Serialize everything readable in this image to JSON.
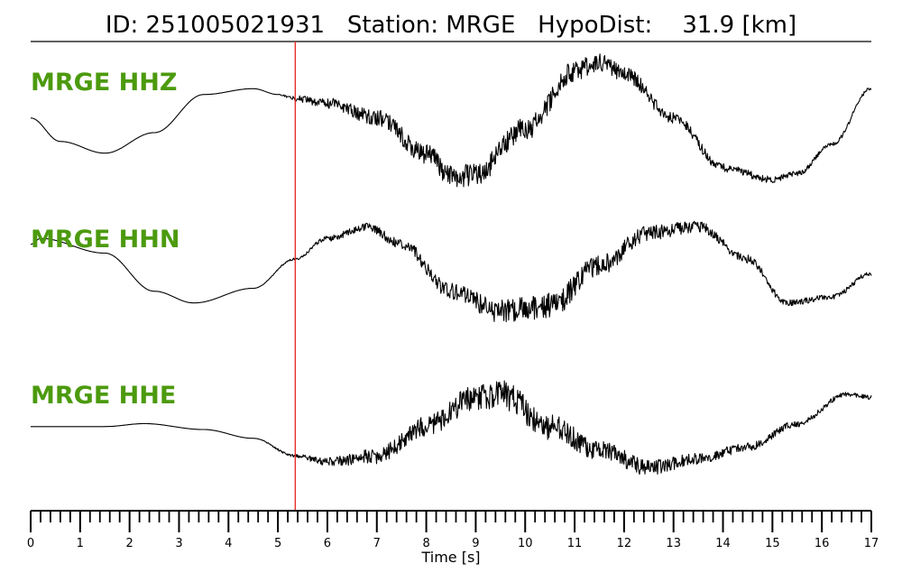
{
  "header": {
    "title": "ID: 251005021931   Station: MRGE   HypoDist:    31.9 [km]"
  },
  "colors": {
    "trace": "#000000",
    "label": "#4c9a0e",
    "pick_line": "#e8231c",
    "axis": "#000000"
  },
  "chart_data": {
    "type": "line",
    "title": "ID: 251005021931   Station: MRGE   HypoDist:    31.9 [km]",
    "xlabel": "Time [s]",
    "ylabel": "",
    "xlim": [
      0,
      17
    ],
    "x_ticks": [
      "0",
      "1",
      "2",
      "3",
      "4",
      "5",
      "6",
      "7",
      "8",
      "9",
      "10",
      "11",
      "12",
      "13",
      "14",
      "15",
      "16",
      "17"
    ],
    "grid": false,
    "pick_time": 5.35,
    "normalized_amplitude": true,
    "series": [
      {
        "name": "MRGE HHZ",
        "t": [
          0,
          0.6,
          1.5,
          2.5,
          3.5,
          4.5,
          5.0,
          5.35,
          6.0,
          7.0,
          8.0,
          8.5,
          9.0,
          10.0,
          11.0,
          11.5,
          12.0,
          13.0,
          14.0,
          15.0,
          15.5,
          16.2,
          17.0
        ],
        "value": [
          0.05,
          -0.35,
          -0.55,
          -0.2,
          0.45,
          0.55,
          0.45,
          0.38,
          0.3,
          0.05,
          -0.55,
          -0.95,
          -0.9,
          -0.15,
          0.85,
          1.0,
          0.8,
          0.05,
          -0.8,
          -1.0,
          -0.9,
          -0.4,
          0.55
        ],
        "noise": [
          0,
          0,
          0,
          0,
          0,
          0,
          0,
          0.05,
          0.1,
          0.15,
          0.2,
          0.22,
          0.22,
          0.22,
          0.2,
          0.18,
          0.15,
          0.1,
          0.08,
          0.06,
          0.05,
          0.04,
          0.04
        ]
      },
      {
        "name": "MRGE HHN",
        "t": [
          0,
          0.2,
          1.5,
          2.5,
          3.3,
          4.5,
          5.35,
          6.0,
          6.8,
          7.5,
          8.5,
          9.5,
          10.5,
          11.5,
          12.5,
          13.5,
          14.5,
          15.3,
          16.2,
          17.0
        ],
        "value": [
          0.45,
          0.55,
          0.3,
          -0.35,
          -0.55,
          -0.3,
          0.2,
          0.55,
          0.75,
          0.45,
          -0.35,
          -0.7,
          -0.6,
          0.1,
          0.65,
          0.75,
          0.2,
          -0.55,
          -0.45,
          -0.05
        ],
        "noise": [
          0,
          0,
          0,
          0,
          0,
          0,
          0.02,
          0.05,
          0.08,
          0.1,
          0.15,
          0.22,
          0.25,
          0.2,
          0.15,
          0.1,
          0.08,
          0.06,
          0.05,
          0.05
        ]
      },
      {
        "name": "MRGE HHE",
        "t": [
          0,
          1.5,
          2.3,
          3.5,
          4.5,
          5.35,
          6.0,
          7.0,
          8.0,
          9.0,
          9.5,
          10.5,
          11.5,
          12.5,
          13.5,
          14.5,
          15.5,
          16.5,
          17.0
        ],
        "value": [
          0.05,
          0.05,
          0.1,
          0.0,
          -0.15,
          -0.45,
          -0.55,
          -0.45,
          0.05,
          0.55,
          0.6,
          0.05,
          -0.35,
          -0.65,
          -0.5,
          -0.3,
          0.1,
          0.6,
          0.55
        ],
        "noise": [
          0,
          0,
          0,
          0,
          0,
          0.03,
          0.08,
          0.15,
          0.2,
          0.25,
          0.28,
          0.25,
          0.18,
          0.15,
          0.1,
          0.08,
          0.06,
          0.04,
          0.04
        ]
      }
    ]
  }
}
